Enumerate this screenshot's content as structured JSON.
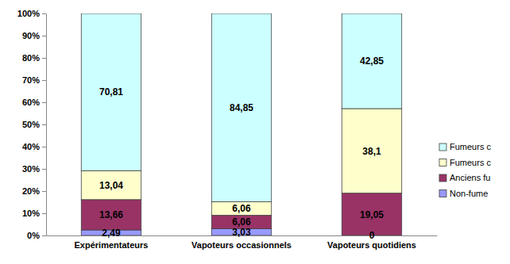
{
  "chart_data": {
    "type": "bar",
    "stacked": true,
    "data_labels": true,
    "legend": "right",
    "grid": false,
    "categories": [
      "Expérimentateurs",
      "Vapoteurs occasionnels",
      "Vapoteurs quotidiens"
    ],
    "ylim": [
      0,
      100
    ],
    "yticks": [
      {
        "value": 0,
        "label": "0%"
      },
      {
        "value": 10,
        "label": "10%"
      },
      {
        "value": 20,
        "label": "20%"
      },
      {
        "value": 30,
        "label": "30%"
      },
      {
        "value": 40,
        "label": "40%"
      },
      {
        "value": 50,
        "label": "50%"
      },
      {
        "value": 60,
        "label": "60%"
      },
      {
        "value": 70,
        "label": "70%"
      },
      {
        "value": 80,
        "label": "80%"
      },
      {
        "value": 90,
        "label": "90%"
      },
      {
        "value": 100,
        "label": "100%"
      }
    ],
    "series": [
      {
        "name": "Non-fume",
        "color": "#9999ff",
        "values": [
          2.49,
          3.03,
          0
        ],
        "value_labels": [
          "2,49",
          "3,03",
          "0"
        ]
      },
      {
        "name": "Anciens fu",
        "color": "#993366",
        "values": [
          13.66,
          6.06,
          19.05
        ],
        "value_labels": [
          "13,66",
          "6,06",
          "19,05"
        ]
      },
      {
        "name": "Fumeurs c",
        "color": "#ffffcc",
        "values": [
          13.04,
          6.06,
          38.1
        ],
        "value_labels": [
          "13,04",
          "6,06",
          "38,1"
        ]
      },
      {
        "name": "Fumeurs c",
        "color": "#ccffff",
        "values": [
          70.81,
          84.85,
          42.85
        ],
        "value_labels": [
          "70,81",
          "84,85",
          "42,85"
        ]
      }
    ]
  }
}
